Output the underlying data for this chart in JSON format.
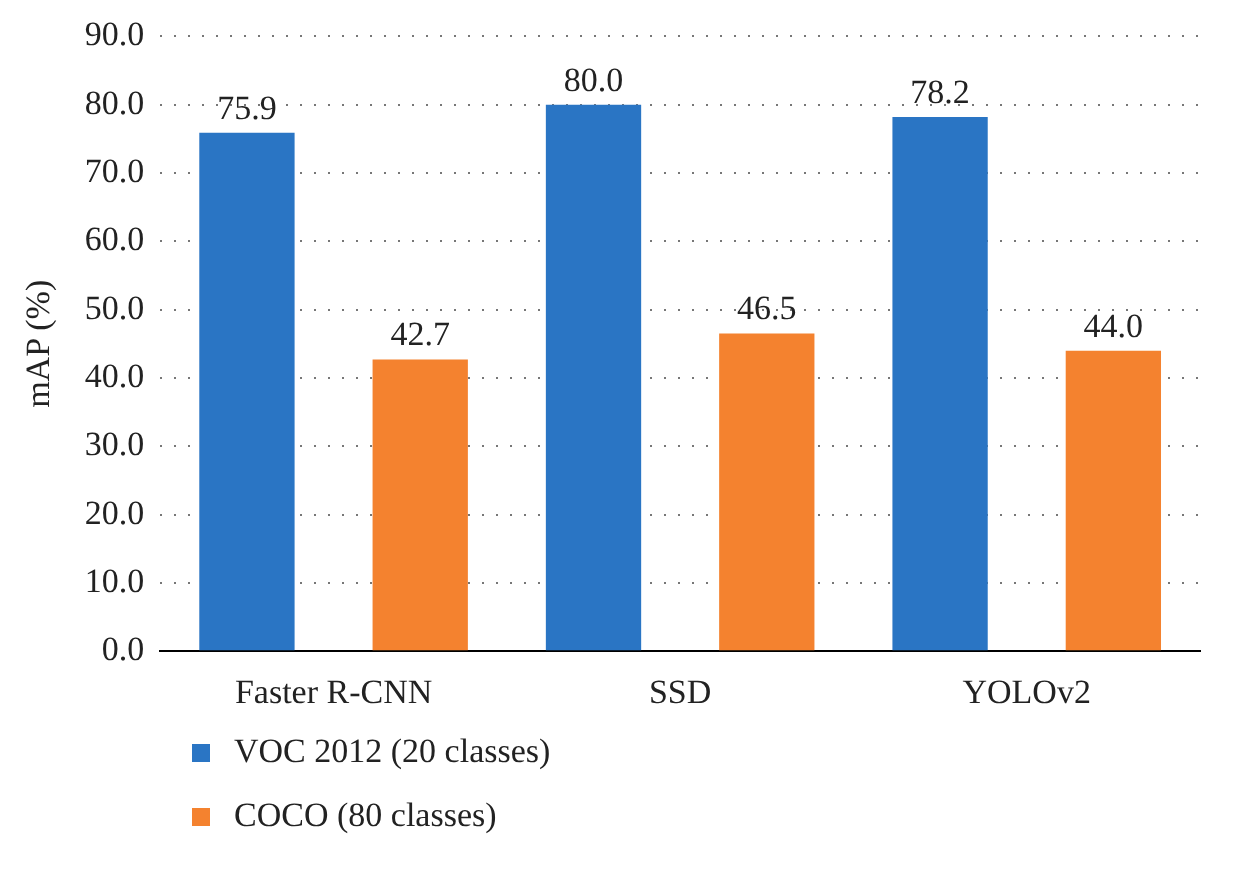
{
  "chart_data": {
    "type": "bar",
    "ylabel": "mAP (%)",
    "categories": [
      "Faster R-CNN",
      "SSD",
      "YOLOv2"
    ],
    "series": [
      {
        "name": "VOC 2012 (20 classes)",
        "color": "#2a75c4",
        "values": [
          75.9,
          80.0,
          78.2
        ],
        "value_labels": [
          "75.9",
          "80.0",
          "78.2"
        ]
      },
      {
        "name": "COCO (80 classes)",
        "color": "#f4822f",
        "values": [
          42.7,
          46.5,
          44.0
        ],
        "value_labels": [
          "42.7",
          "46.5",
          "44.0"
        ]
      }
    ],
    "ylim": [
      0,
      90
    ],
    "yticks": [
      {
        "value": 0,
        "label": "0.0"
      },
      {
        "value": 10,
        "label": "10.0"
      },
      {
        "value": 20,
        "label": "20.0"
      },
      {
        "value": 30,
        "label": "30.0"
      },
      {
        "value": 40,
        "label": "40.0"
      },
      {
        "value": 50,
        "label": "50.0"
      },
      {
        "value": 60,
        "label": "60.0"
      },
      {
        "value": 70,
        "label": "70.0"
      },
      {
        "value": 80,
        "label": "80.0"
      },
      {
        "value": 90,
        "label": "90.0"
      }
    ],
    "grid": "y",
    "legend": "bottom left"
  }
}
